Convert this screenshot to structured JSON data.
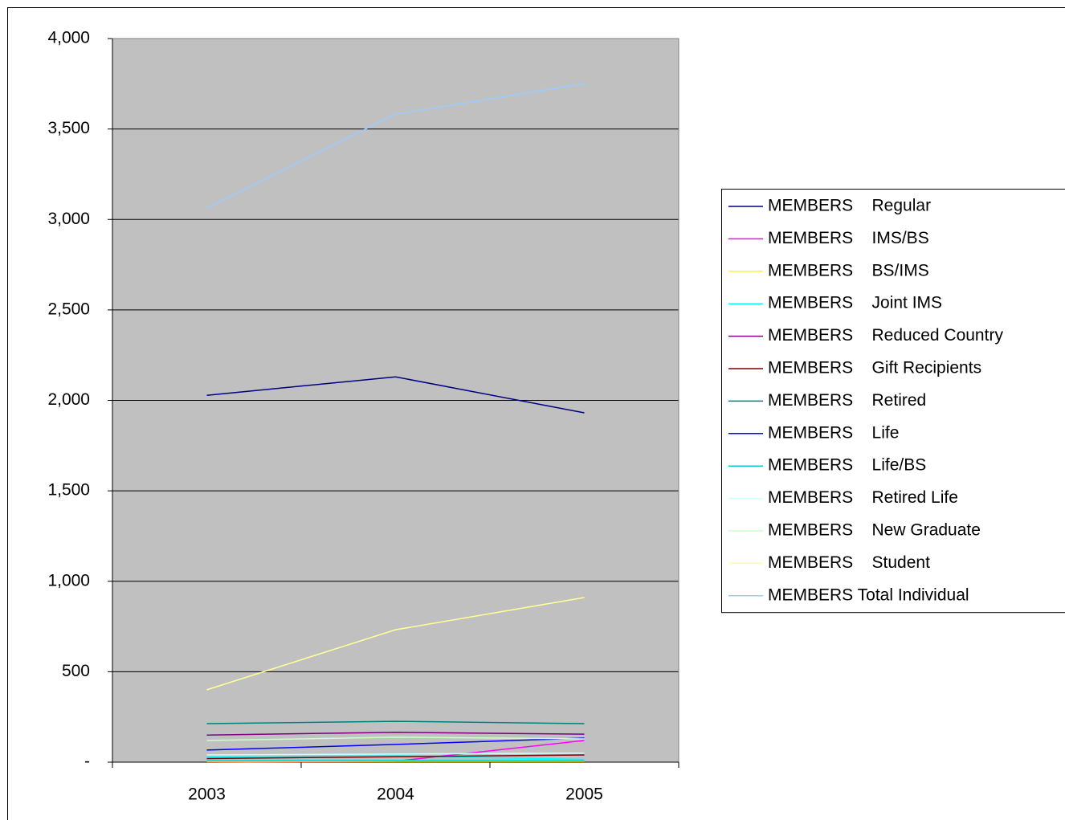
{
  "chart_data": {
    "type": "line",
    "categories": [
      "2003",
      "2004",
      "2005"
    ],
    "series": [
      {
        "name": "MEMBERS    Regular",
        "color": "#000080",
        "values": [
          2028,
          2130,
          1931
        ]
      },
      {
        "name": "MEMBERS    IMS/BS",
        "color": "#FF00FF",
        "values": [
          0,
          5,
          120
        ]
      },
      {
        "name": "MEMBERS    BS/IMS",
        "color": "#FFFF00",
        "values": [
          5,
          5,
          5
        ]
      },
      {
        "name": "MEMBERS    Joint IMS",
        "color": "#00FFFF",
        "values": [
          30,
          35,
          15
        ]
      },
      {
        "name": "MEMBERS    Reduced Country",
        "color": "#800080",
        "values": [
          150,
          165,
          155
        ]
      },
      {
        "name": "MEMBERS    Gift Recipients",
        "color": "#800000",
        "values": [
          20,
          30,
          40
        ]
      },
      {
        "name": "MEMBERS    Retired",
        "color": "#008080",
        "values": [
          213,
          226,
          213
        ]
      },
      {
        "name": "MEMBERS    Life",
        "color": "#0000FF",
        "values": [
          67,
          98,
          133
        ]
      },
      {
        "name": "MEMBERS    Life/BS",
        "color": "#00CCCC",
        "values": [
          10,
          10,
          10
        ]
      },
      {
        "name": "MEMBERS    Retired Life",
        "color": "#CCFFFF",
        "values": [
          40,
          45,
          50
        ]
      },
      {
        "name": "MEMBERS    New Graduate",
        "color": "#CCFFCC",
        "values": [
          120,
          138,
          129
        ]
      },
      {
        "name": "MEMBERS    Student",
        "color": "#FFFF99",
        "values": [
          400,
          732,
          910
        ]
      },
      {
        "name": "MEMBERS Total Individual",
        "color": "#99CCFF",
        "values": [
          3063,
          3582,
          3751
        ]
      }
    ],
    "ylim": [
      0,
      4000
    ],
    "yticks": [
      {
        "value": 0,
        "label": "-"
      },
      500,
      {
        "value": 1000,
        "label": "1,000"
      },
      {
        "value": 1500,
        "label": "1,500"
      },
      {
        "value": 2000,
        "label": "2,000"
      },
      {
        "value": 2500,
        "label": "2,500"
      },
      {
        "value": 3000,
        "label": "3,000"
      },
      {
        "value": 3500,
        "label": "3,500"
      },
      {
        "value": 4000,
        "label": "4,000"
      }
    ],
    "grid": true,
    "plot_background": "#C0C0C0",
    "legend": "right"
  }
}
